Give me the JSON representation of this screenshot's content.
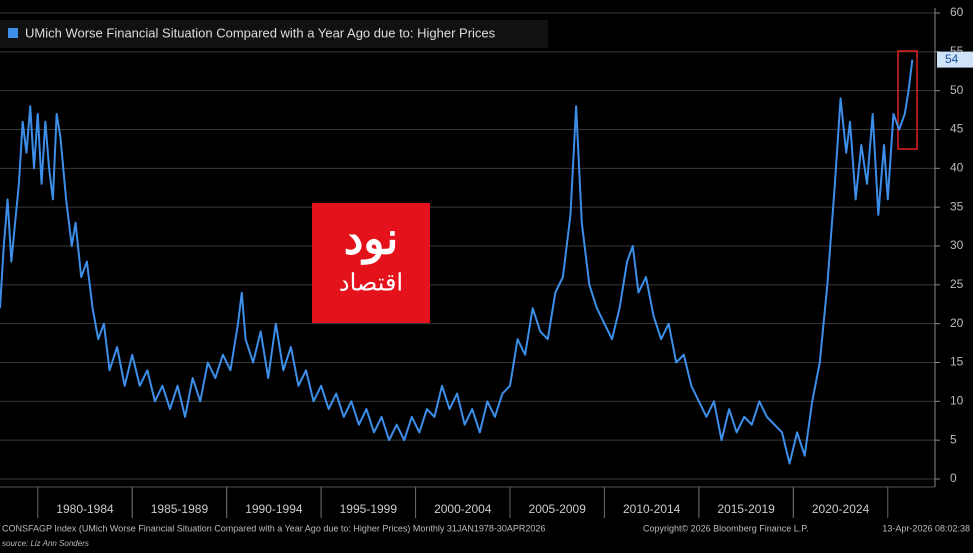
{
  "chart_data": {
    "type": "line",
    "title": "UMich Worse Financial Situation Compared with a Year Ago due to: Higher Prices",
    "watermark": [
      "نود",
      "اقتصاد"
    ],
    "footer": "CONSFAGP Index (UMich Worse Financial Situation Compared with a Year Ago due to: Higher Prices) Monthly 31JAN1978-30APR2026",
    "copyright": "Copyright© 2026 Bloomberg Finance L.P.",
    "timestamp": "13-Apr-2026 08:02:38",
    "source": "source: Liz Ann Sonders",
    "xlim": [
      1978,
      2027.5
    ],
    "xticks": [
      {
        "value": 1982.5,
        "label": "1980-1984"
      },
      {
        "value": 1987.5,
        "label": "1985-1989"
      },
      {
        "value": 1992.5,
        "label": "1990-1994"
      },
      {
        "value": 1997.5,
        "label": "1995-1999"
      },
      {
        "value": 2002.5,
        "label": "2000-2004"
      },
      {
        "value": 2007.5,
        "label": "2005-2009"
      },
      {
        "value": 2012.5,
        "label": "2010-2014"
      },
      {
        "value": 2017.5,
        "label": "2015-2019"
      },
      {
        "value": 2022.5,
        "label": "2020-2024"
      }
    ],
    "ylim": [
      0,
      60
    ],
    "yticks": [
      0,
      5,
      10,
      15,
      20,
      25,
      30,
      35,
      40,
      45,
      50,
      55,
      60
    ],
    "grid": true,
    "x": [
      1978.0,
      1978.2,
      1978.4,
      1978.6,
      1978.8,
      1979.0,
      1979.2,
      1979.4,
      1979.6,
      1979.8,
      1980.0,
      1980.2,
      1980.4,
      1980.6,
      1980.8,
      1981.0,
      1981.2,
      1981.5,
      1981.8,
      1982.0,
      1982.3,
      1982.6,
      1982.9,
      1983.2,
      1983.5,
      1983.8,
      1984.2,
      1984.6,
      1985.0,
      1985.4,
      1985.8,
      1986.2,
      1986.6,
      1987.0,
      1987.4,
      1987.8,
      1988.2,
      1988.6,
      1989.0,
      1989.4,
      1989.8,
      1990.2,
      1990.6,
      1990.8,
      1991.0,
      1991.4,
      1991.8,
      1992.2,
      1992.6,
      1993.0,
      1993.4,
      1993.8,
      1994.2,
      1994.6,
      1995.0,
      1995.4,
      1995.8,
      1996.2,
      1996.6,
      1997.0,
      1997.4,
      1997.8,
      1998.2,
      1998.6,
      1999.0,
      1999.4,
      1999.8,
      2000.2,
      2000.6,
      2001.0,
      2001.4,
      2001.8,
      2002.2,
      2002.6,
      2003.0,
      2003.4,
      2003.8,
      2004.2,
      2004.6,
      2005.0,
      2005.4,
      2005.8,
      2006.2,
      2006.6,
      2007.0,
      2007.4,
      2007.8,
      2008.2,
      2008.5,
      2008.8,
      2009.2,
      2009.6,
      2010.0,
      2010.4,
      2010.8,
      2011.2,
      2011.5,
      2011.8,
      2012.2,
      2012.6,
      2013.0,
      2013.4,
      2013.8,
      2014.2,
      2014.6,
      2015.0,
      2015.4,
      2015.8,
      2016.2,
      2016.6,
      2017.0,
      2017.4,
      2017.8,
      2018.2,
      2018.6,
      2019.0,
      2019.4,
      2019.8,
      2020.2,
      2020.6,
      2021.0,
      2021.4,
      2021.8,
      2022.2,
      2022.5,
      2022.8,
      2023.0,
      2023.3,
      2023.6,
      2023.9,
      2024.2,
      2024.5,
      2024.8,
      2025.0,
      2025.3,
      2025.6,
      2025.9,
      2026.1,
      2026.3
    ],
    "series": [
      {
        "name": "UMich Worse Financial Situation Compared with a Year Ago due to: Higher Prices",
        "color": "#3d8ee8",
        "values": [
          22,
          30,
          36,
          28,
          33,
          38,
          46,
          42,
          48,
          40,
          47,
          38,
          46,
          40,
          36,
          47,
          44,
          36,
          30,
          33,
          26,
          28,
          22,
          18,
          20,
          14,
          17,
          12,
          16,
          12,
          14,
          10,
          12,
          9,
          12,
          8,
          13,
          10,
          15,
          13,
          16,
          14,
          20,
          24,
          18,
          15,
          19,
          13,
          20,
          14,
          17,
          12,
          14,
          10,
          12,
          9,
          11,
          8,
          10,
          7,
          9,
          6,
          8,
          5,
          7,
          5,
          8,
          6,
          9,
          8,
          12,
          9,
          11,
          7,
          9,
          6,
          10,
          8,
          11,
          12,
          18,
          16,
          22,
          19,
          18,
          24,
          26,
          34,
          48,
          33,
          25,
          22,
          20,
          18,
          22,
          28,
          30,
          24,
          26,
          21,
          18,
          20,
          15,
          16,
          12,
          10,
          8,
          10,
          5,
          9,
          6,
          8,
          7,
          10,
          8,
          7,
          6,
          2,
          6,
          3,
          10,
          15,
          25,
          38,
          49,
          42,
          46,
          36,
          43,
          38,
          47,
          34,
          43,
          36,
          47,
          45,
          47,
          50,
          54
        ]
      }
    ]
  }
}
